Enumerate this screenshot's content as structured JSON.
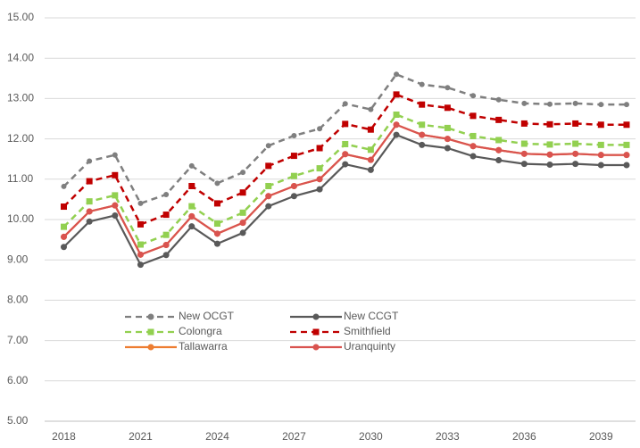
{
  "chart_data": {
    "type": "line",
    "x": [
      2018,
      2019,
      2020,
      2021,
      2022,
      2023,
      2024,
      2025,
      2026,
      2027,
      2028,
      2029,
      2030,
      2031,
      2032,
      2033,
      2034,
      2035,
      2036,
      2037,
      2038,
      2039,
      2040
    ],
    "xlim": [
      2017.25,
      2040.35
    ],
    "xticks": [
      2018,
      2021,
      2024,
      2027,
      2030,
      2033,
      2036,
      2039
    ],
    "ylim": [
      5,
      15
    ],
    "yticks": [
      {
        "value": 5,
        "label": "5.00"
      },
      {
        "value": 6,
        "label": "6.00"
      },
      {
        "value": 7,
        "label": "7.00"
      },
      {
        "value": 8,
        "label": "8.00"
      },
      {
        "value": 9,
        "label": "9.00"
      },
      {
        "value": 10,
        "label": "10.00"
      },
      {
        "value": 11,
        "label": "11.00"
      },
      {
        "value": 12,
        "label": "12.00"
      },
      {
        "value": 13,
        "label": "13.00"
      },
      {
        "value": 14,
        "label": "14.00"
      },
      {
        "value": 15,
        "label": "15.00"
      }
    ],
    "grid": true,
    "series": [
      {
        "name": "New OCGT",
        "color": "#7f7f7f",
        "dashed": true,
        "marker": "circle",
        "values": [
          10.82,
          11.45,
          11.6,
          10.4,
          10.62,
          11.33,
          10.9,
          11.17,
          11.83,
          12.08,
          12.25,
          12.87,
          12.73,
          13.6,
          13.35,
          13.27,
          13.07,
          12.97,
          12.88,
          12.86,
          12.88,
          12.85,
          12.85
        ]
      },
      {
        "name": "New CCGT",
        "color": "#595959",
        "dashed": false,
        "marker": "circle",
        "values": [
          9.32,
          9.95,
          10.1,
          8.88,
          9.12,
          9.83,
          9.4,
          9.67,
          10.33,
          10.58,
          10.75,
          11.37,
          11.23,
          12.1,
          11.85,
          11.77,
          11.57,
          11.47,
          11.38,
          11.36,
          11.38,
          11.35,
          11.35
        ]
      },
      {
        "name": "Colongra",
        "color": "#92d050",
        "dashed": true,
        "marker": "square",
        "values": [
          9.82,
          10.45,
          10.6,
          9.38,
          9.62,
          10.33,
          9.9,
          10.17,
          10.83,
          11.08,
          11.27,
          11.87,
          11.73,
          12.6,
          12.35,
          12.27,
          12.07,
          11.97,
          11.88,
          11.86,
          11.88,
          11.85,
          11.85
        ]
      },
      {
        "name": "Smithfield",
        "color": "#c00000",
        "dashed": true,
        "marker": "square",
        "values": [
          10.32,
          10.95,
          11.1,
          9.88,
          10.12,
          10.83,
          10.4,
          10.67,
          11.33,
          11.58,
          11.77,
          12.37,
          12.23,
          13.1,
          12.85,
          12.77,
          12.57,
          12.47,
          12.38,
          12.36,
          12.38,
          12.35,
          12.35
        ]
      },
      {
        "name": "Tallawarra",
        "color": "#ed7d31",
        "dashed": false,
        "marker": "circle",
        "values": [
          9.57,
          10.2,
          10.35,
          9.13,
          9.37,
          10.08,
          9.65,
          9.92,
          10.58,
          10.83,
          11.0,
          11.62,
          11.48,
          12.35,
          12.1,
          12.0,
          11.82,
          11.72,
          11.63,
          11.61,
          11.63,
          11.6,
          11.6
        ]
      },
      {
        "name": "Uranquinty",
        "color": "#d9534f",
        "dashed": false,
        "marker": "circle",
        "values": [
          9.57,
          10.2,
          10.35,
          9.13,
          9.37,
          10.08,
          9.65,
          9.92,
          10.58,
          10.83,
          11.0,
          11.62,
          11.48,
          12.35,
          12.1,
          12.0,
          11.82,
          11.72,
          11.63,
          11.61,
          11.63,
          11.6,
          11.6
        ]
      }
    ]
  }
}
